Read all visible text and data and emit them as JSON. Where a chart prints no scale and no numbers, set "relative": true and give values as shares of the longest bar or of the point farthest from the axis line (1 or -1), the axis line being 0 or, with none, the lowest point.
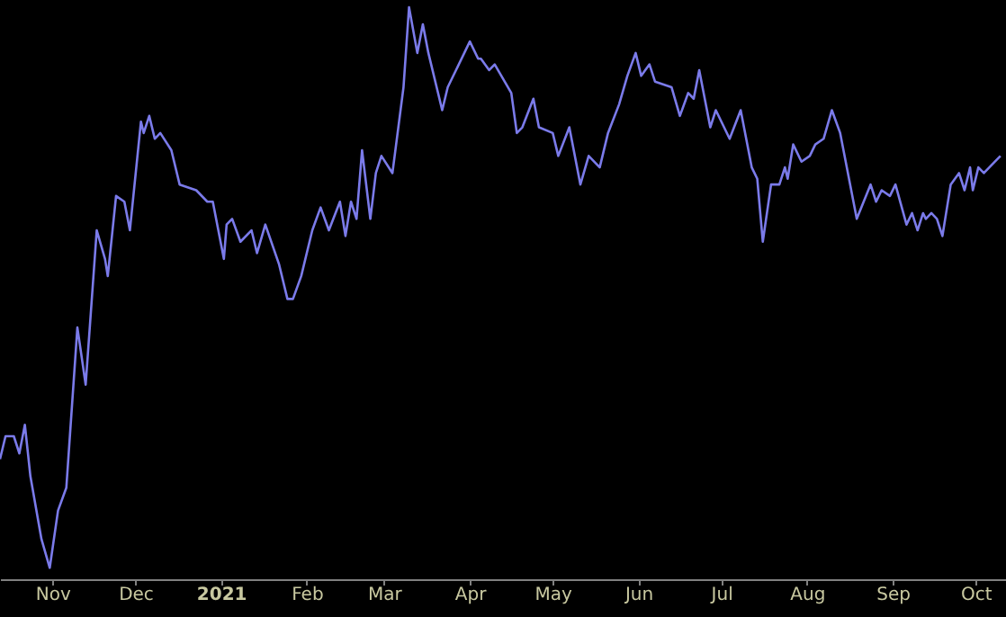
{
  "chart_data": {
    "type": "line",
    "relative": true,
    "xlim": [
      "2020-10-13",
      "2021-10-12"
    ],
    "xticks": [
      {
        "value": "2020-11-01",
        "label": "Nov"
      },
      {
        "value": "2020-12-01",
        "label": "Dec"
      },
      {
        "value": "2021-01-01",
        "label": "2021"
      },
      {
        "value": "2021-02-01",
        "label": "Feb"
      },
      {
        "value": "2021-03-01",
        "label": "Mar"
      },
      {
        "value": "2021-04-01",
        "label": "Apr"
      },
      {
        "value": "2021-05-01",
        "label": "May"
      },
      {
        "value": "2021-06-01",
        "label": "Jun"
      },
      {
        "value": "2021-07-01",
        "label": "Jul"
      },
      {
        "value": "2021-08-01",
        "label": "Aug"
      },
      {
        "value": "2021-09-01",
        "label": "Sep"
      },
      {
        "value": "2021-10-01",
        "label": "Oct"
      }
    ],
    "x": [
      "2020-10-13",
      "2020-10-15",
      "2020-10-18",
      "2020-10-20",
      "2020-10-22",
      "2020-10-24",
      "2020-10-28",
      "2020-10-31",
      "2020-11-03",
      "2020-11-06",
      "2020-11-10",
      "2020-11-13",
      "2020-11-17",
      "2020-11-20",
      "2020-11-21",
      "2020-11-24",
      "2020-11-27",
      "2020-11-29",
      "2020-12-03",
      "2020-12-04",
      "2020-12-06",
      "2020-12-08",
      "2020-12-10",
      "2020-12-14",
      "2020-12-17",
      "2020-12-23",
      "2020-12-27",
      "2020-12-29",
      "2021-01-02",
      "2021-01-03",
      "2021-01-05",
      "2021-01-08",
      "2021-01-12",
      "2021-01-14",
      "2021-01-17",
      "2021-01-22",
      "2021-01-25",
      "2021-01-27",
      "2021-01-30",
      "2021-02-03",
      "2021-02-06",
      "2021-02-09",
      "2021-02-13",
      "2021-02-15",
      "2021-02-17",
      "2021-02-19",
      "2021-02-21",
      "2021-02-24",
      "2021-02-26",
      "2021-02-28",
      "2021-03-04",
      "2021-03-08",
      "2021-03-10",
      "2021-03-13",
      "2021-03-15",
      "2021-03-17",
      "2021-03-22",
      "2021-03-24",
      "2021-03-27",
      "2021-04-01",
      "2021-04-04",
      "2021-04-05",
      "2021-04-08",
      "2021-04-10",
      "2021-04-16",
      "2021-04-18",
      "2021-04-20",
      "2021-04-24",
      "2021-04-26",
      "2021-05-01",
      "2021-05-03",
      "2021-05-07",
      "2021-05-11",
      "2021-05-14",
      "2021-05-18",
      "2021-05-21",
      "2021-05-25",
      "2021-05-28",
      "2021-05-31",
      "2021-06-02",
      "2021-06-05",
      "2021-06-07",
      "2021-06-13",
      "2021-06-16",
      "2021-06-19",
      "2021-06-21",
      "2021-06-23",
      "2021-06-27",
      "2021-06-29",
      "2021-07-04",
      "2021-07-08",
      "2021-07-12",
      "2021-07-14",
      "2021-07-16",
      "2021-07-19",
      "2021-07-22",
      "2021-07-24",
      "2021-07-25",
      "2021-07-27",
      "2021-07-30",
      "2021-08-02",
      "2021-08-04",
      "2021-08-07",
      "2021-08-10",
      "2021-08-13",
      "2021-08-19",
      "2021-08-24",
      "2021-08-26",
      "2021-08-28",
      "2021-08-31",
      "2021-09-02",
      "2021-09-06",
      "2021-09-08",
      "2021-09-10",
      "2021-09-12",
      "2021-09-13",
      "2021-09-15",
      "2021-09-17",
      "2021-09-19",
      "2021-09-22",
      "2021-09-25",
      "2021-09-27",
      "2021-09-29",
      "2021-09-30",
      "2021-10-02",
      "2021-10-04",
      "2021-10-08",
      "2021-10-10"
    ],
    "series": [
      {
        "color": "#7b7bea",
        "values": [
          0.21,
          0.25,
          0.25,
          0.22,
          0.27,
          0.18,
          0.07,
          0.02,
          0.12,
          0.16,
          0.44,
          0.34,
          0.61,
          0.56,
          0.53,
          0.67,
          0.66,
          0.61,
          0.8,
          0.78,
          0.81,
          0.77,
          0.78,
          0.75,
          0.69,
          0.68,
          0.66,
          0.66,
          0.56,
          0.62,
          0.63,
          0.59,
          0.61,
          0.57,
          0.62,
          0.55,
          0.49,
          0.49,
          0.53,
          0.61,
          0.65,
          0.61,
          0.66,
          0.6,
          0.66,
          0.63,
          0.75,
          0.63,
          0.71,
          0.74,
          0.71,
          0.86,
          1.0,
          0.92,
          0.97,
          0.92,
          0.82,
          0.86,
          0.89,
          0.94,
          0.91,
          0.91,
          0.89,
          0.9,
          0.85,
          0.78,
          0.79,
          0.84,
          0.79,
          0.78,
          0.74,
          0.79,
          0.69,
          0.74,
          0.72,
          0.78,
          0.83,
          0.88,
          0.92,
          0.88,
          0.9,
          0.87,
          0.86,
          0.81,
          0.85,
          0.84,
          0.89,
          0.79,
          0.82,
          0.77,
          0.82,
          0.72,
          0.7,
          0.59,
          0.69,
          0.69,
          0.72,
          0.7,
          0.76,
          0.73,
          0.74,
          0.76,
          0.77,
          0.82,
          0.78,
          0.63,
          0.69,
          0.66,
          0.68,
          0.67,
          0.69,
          0.62,
          0.64,
          0.61,
          0.64,
          0.63,
          0.64,
          0.63,
          0.6,
          0.69,
          0.71,
          0.68,
          0.72,
          0.68,
          0.72,
          0.71,
          0.73,
          0.74
        ]
      }
    ]
  }
}
